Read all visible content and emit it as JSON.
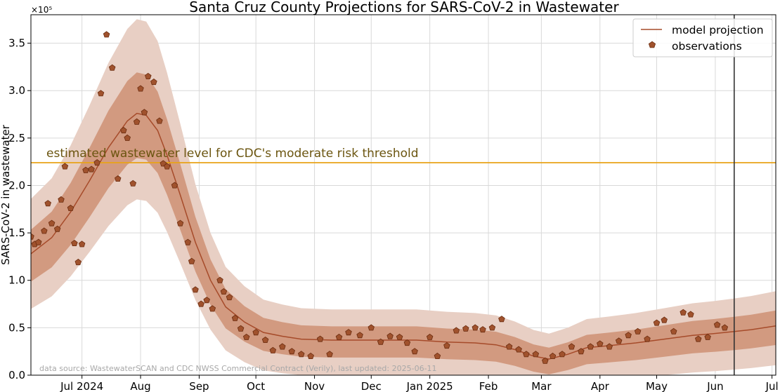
{
  "chart_data": {
    "type": "line",
    "title": "Santa Cruz County Projections for SARS-CoV-2 in Wastewater",
    "ylabel": "SARS-CoV-2 in wastewater",
    "xlabel": "",
    "y_offset_label": "×10⁵",
    "ylim": [
      0,
      380000
    ],
    "xlim": [
      "2024-06-04",
      "2025-07-03"
    ],
    "grid": true,
    "legend_position": "top-right",
    "x_ticks": [
      {
        "date": "2024-07-01",
        "label": "Jul 2024"
      },
      {
        "date": "2024-08-01",
        "label": "Aug"
      },
      {
        "date": "2024-09-01",
        "label": "Sep"
      },
      {
        "date": "2024-10-01",
        "label": "Oct"
      },
      {
        "date": "2024-11-01",
        "label": "Nov"
      },
      {
        "date": "2024-12-01",
        "label": "Dec"
      },
      {
        "date": "2025-01-01",
        "label": "Jan 2025"
      },
      {
        "date": "2025-02-01",
        "label": "Feb"
      },
      {
        "date": "2025-03-01",
        "label": "Mar"
      },
      {
        "date": "2025-04-01",
        "label": "Apr"
      },
      {
        "date": "2025-05-01",
        "label": "May"
      },
      {
        "date": "2025-06-01",
        "label": "Jun"
      },
      {
        "date": "2025-07-01",
        "label": "Jul"
      }
    ],
    "y_ticks": [
      {
        "value": 0,
        "label": "0.0"
      },
      {
        "value": 50000,
        "label": "0.5"
      },
      {
        "value": 100000,
        "label": "1.0"
      },
      {
        "value": 150000,
        "label": "1.5"
      },
      {
        "value": 200000,
        "label": "2.0"
      },
      {
        "value": 250000,
        "label": "2.5"
      },
      {
        "value": 300000,
        "label": "3.0"
      },
      {
        "value": 350000,
        "label": "3.5"
      }
    ],
    "threshold": {
      "value": 224000,
      "label": "estimated wastewater level for CDC's moderate risk threshold",
      "color": "#e8a317"
    },
    "current_date_line": "2025-06-11",
    "colors": {
      "line": "#a64b2a",
      "marker_fill": "#a0522d",
      "marker_edge": "#6b2d10",
      "band_outer": "#e8cfc4",
      "band_inner": "#d29a80"
    },
    "series": [
      {
        "name": "model projection",
        "kind": "line",
        "x": [
          "2024-06-04",
          "2024-06-15",
          "2024-06-25",
          "2024-07-05",
          "2024-07-15",
          "2024-07-25",
          "2024-07-30",
          "2024-08-04",
          "2024-08-10",
          "2024-08-15",
          "2024-08-22",
          "2024-08-30",
          "2024-09-07",
          "2024-09-15",
          "2024-09-25",
          "2024-10-05",
          "2024-10-15",
          "2024-10-25",
          "2024-11-10",
          "2024-11-25",
          "2024-12-10",
          "2024-12-25",
          "2025-01-10",
          "2025-01-25",
          "2025-02-05",
          "2025-02-15",
          "2025-02-25",
          "2025-03-05",
          "2025-03-15",
          "2025-03-25",
          "2025-04-05",
          "2025-04-20",
          "2025-05-05",
          "2025-05-20",
          "2025-06-01",
          "2025-06-11",
          "2025-06-20",
          "2025-07-03"
        ],
        "y": [
          128000,
          145000,
          172000,
          205000,
          240000,
          268000,
          276000,
          274000,
          258000,
          232000,
          190000,
          140000,
          100000,
          72000,
          56000,
          45000,
          41000,
          38000,
          37000,
          37000,
          37000,
          37000,
          35000,
          34000,
          32000,
          27000,
          20000,
          17000,
          22000,
          29000,
          31000,
          34000,
          38000,
          42000,
          44000,
          46000,
          48000,
          52000
        ]
      },
      {
        "name": "observations",
        "kind": "scatter",
        "x": [
          "2024-06-04",
          "2024-06-06",
          "2024-06-08",
          "2024-06-11",
          "2024-06-13",
          "2024-06-15",
          "2024-06-18",
          "2024-06-20",
          "2024-06-22",
          "2024-06-25",
          "2024-06-27",
          "2024-06-29",
          "2024-07-01",
          "2024-07-03",
          "2024-07-06",
          "2024-07-09",
          "2024-07-11",
          "2024-07-14",
          "2024-07-17",
          "2024-07-20",
          "2024-07-23",
          "2024-07-25",
          "2024-07-28",
          "2024-07-30",
          "2024-08-01",
          "2024-08-03",
          "2024-08-05",
          "2024-08-08",
          "2024-08-11",
          "2024-08-13",
          "2024-08-15",
          "2024-08-19",
          "2024-08-22",
          "2024-08-26",
          "2024-08-28",
          "2024-08-30",
          "2024-09-02",
          "2024-09-05",
          "2024-09-08",
          "2024-09-12",
          "2024-09-14",
          "2024-09-17",
          "2024-09-20",
          "2024-09-23",
          "2024-09-26",
          "2024-10-01",
          "2024-10-06",
          "2024-10-10",
          "2024-10-15",
          "2024-10-20",
          "2024-10-25",
          "2024-10-30",
          "2024-11-04",
          "2024-11-09",
          "2024-11-14",
          "2024-11-19",
          "2024-11-25",
          "2024-12-01",
          "2024-12-06",
          "2024-12-11",
          "2024-12-16",
          "2024-12-20",
          "2024-12-24",
          "2025-01-01",
          "2025-01-05",
          "2025-01-10",
          "2025-01-15",
          "2025-01-20",
          "2025-01-25",
          "2025-01-29",
          "2025-02-03",
          "2025-02-08",
          "2025-02-12",
          "2025-02-17",
          "2025-02-21",
          "2025-02-26",
          "2025-03-03",
          "2025-03-07",
          "2025-03-12",
          "2025-03-17",
          "2025-03-22",
          "2025-03-27",
          "2025-04-01",
          "2025-04-06",
          "2025-04-11",
          "2025-04-16",
          "2025-04-21",
          "2025-04-26",
          "2025-05-01",
          "2025-05-05",
          "2025-05-10",
          "2025-05-15",
          "2025-05-19",
          "2025-05-23",
          "2025-05-28",
          "2025-06-02",
          "2025-06-06"
        ],
        "y": [
          146000,
          138000,
          140000,
          152000,
          181000,
          160000,
          154000,
          185000,
          220000,
          176000,
          139000,
          119000,
          138000,
          216000,
          217000,
          224000,
          297000,
          359000,
          324000,
          207000,
          258000,
          250000,
          202000,
          267000,
          302000,
          277000,
          315000,
          309000,
          268000,
          223000,
          220000,
          200000,
          160000,
          140000,
          120000,
          90000,
          75000,
          79000,
          70000,
          100000,
          88000,
          82000,
          60000,
          49000,
          40000,
          45000,
          37000,
          26000,
          30000,
          25000,
          22000,
          20000,
          38000,
          22000,
          40000,
          45000,
          42000,
          50000,
          35000,
          41000,
          40000,
          34000,
          25000,
          40000,
          20000,
          31000,
          47000,
          49000,
          50000,
          48000,
          50000,
          59000,
          30000,
          27000,
          22000,
          22000,
          15000,
          20000,
          22000,
          30000,
          25000,
          30000,
          33000,
          30000,
          36000,
          42000,
          46000,
          38000,
          55000,
          58000,
          46000,
          66000,
          64000,
          38000,
          40000,
          53000,
          50000
        ]
      }
    ]
  },
  "source_note": "data source: WastewaterSCAN and CDC NWSS Commercial Contract (Verily), last updated: 2025-06-11"
}
